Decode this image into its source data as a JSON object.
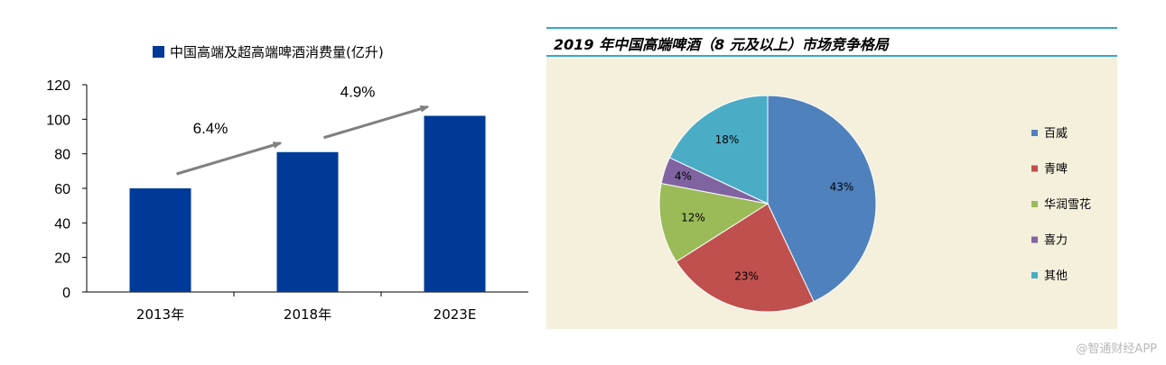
{
  "chart_data": [
    {
      "type": "bar",
      "title": "",
      "legend": {
        "label": "中国高端及超高端啤酒消费量(亿升)",
        "color": "#003a99",
        "placement": "top-center"
      },
      "categories": [
        "2013年",
        "2018年",
        "2023E"
      ],
      "values": [
        60,
        81,
        102
      ],
      "ylim": [
        0,
        120
      ],
      "yticks": [
        0,
        20,
        40,
        60,
        80,
        100,
        120
      ],
      "xlabel": "",
      "ylabel": "",
      "grid": false,
      "annotations": [
        {
          "text": "6.4%",
          "between": [
            0,
            1
          ]
        },
        {
          "text": "4.9%",
          "between": [
            1,
            2
          ]
        }
      ],
      "bar_color": "#003a99",
      "arrow_color": "#808080"
    },
    {
      "type": "pie",
      "title": "2019 年中国高端啤酒（8 元及以上）市场竞争格局",
      "slices": [
        {
          "label": "百威",
          "value": 43,
          "text": "43%",
          "color": "#4f81bd"
        },
        {
          "label": "青啤",
          "value": 23,
          "text": "23%",
          "color": "#c0504d"
        },
        {
          "label": "华润雪花",
          "value": 12,
          "text": "12%",
          "color": "#9bbb59"
        },
        {
          "label": "喜力",
          "value": 4,
          "text": "4%",
          "color": "#8064a2"
        },
        {
          "label": "其他",
          "value": 18,
          "text": "18%",
          "color": "#4bacc6"
        }
      ],
      "legend_placement": "right",
      "background": "#f4f0dc",
      "accent": "#3aa6c9"
    }
  ],
  "watermark": "@智通财经APP"
}
